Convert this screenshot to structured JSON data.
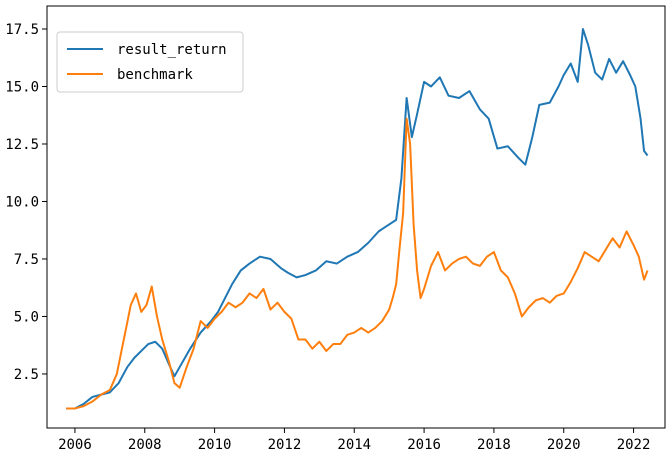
{
  "chart_data": {
    "type": "line",
    "title": "",
    "xlabel": "",
    "ylabel": "",
    "xlim": [
      2005.2,
      2022.9
    ],
    "ylim": [
      0.15,
      18.5
    ],
    "x_ticks": [
      2006,
      2008,
      2010,
      2012,
      2014,
      2016,
      2018,
      2020,
      2022
    ],
    "x_tick_labels": [
      "2006",
      "2008",
      "2010",
      "2012",
      "2014",
      "2016",
      "2018",
      "2020",
      "2022"
    ],
    "y_ticks": [
      2.5,
      5.0,
      7.5,
      10.0,
      12.5,
      15.0,
      17.5
    ],
    "y_tick_labels": [
      "2.5",
      "5.0",
      "7.5",
      "10.0",
      "12.5",
      "15.0",
      "17.5"
    ],
    "grid": false,
    "legend_position": "top-left",
    "series": [
      {
        "name": "result_return",
        "color": "#1f77b4",
        "x": [
          2005.75,
          2006.0,
          2006.25,
          2006.5,
          2006.75,
          2007.0,
          2007.25,
          2007.5,
          2007.7,
          2007.9,
          2008.1,
          2008.3,
          2008.5,
          2008.7,
          2008.85,
          2009.0,
          2009.3,
          2009.6,
          2009.9,
          2010.1,
          2010.3,
          2010.5,
          2010.75,
          2011.0,
          2011.3,
          2011.6,
          2011.9,
          2012.1,
          2012.35,
          2012.6,
          2012.9,
          2013.2,
          2013.5,
          2013.8,
          2014.1,
          2014.4,
          2014.7,
          2015.0,
          2015.2,
          2015.35,
          2015.5,
          2015.65,
          2015.8,
          2016.0,
          2016.2,
          2016.45,
          2016.7,
          2017.0,
          2017.3,
          2017.6,
          2017.85,
          2018.1,
          2018.4,
          2018.7,
          2018.9,
          2019.1,
          2019.3,
          2019.6,
          2019.85,
          2020.0,
          2020.2,
          2020.4,
          2020.55,
          2020.7,
          2020.9,
          2021.1,
          2021.3,
          2021.5,
          2021.7,
          2021.9,
          2022.05,
          2022.2,
          2022.3,
          2022.4
        ],
        "values": [
          1.0,
          1.0,
          1.2,
          1.5,
          1.6,
          1.7,
          2.1,
          2.8,
          3.2,
          3.5,
          3.8,
          3.9,
          3.6,
          2.9,
          2.4,
          2.8,
          3.6,
          4.3,
          4.8,
          5.2,
          5.8,
          6.4,
          7.0,
          7.3,
          7.6,
          7.5,
          7.1,
          6.9,
          6.7,
          6.8,
          7.0,
          7.4,
          7.3,
          7.6,
          7.8,
          8.2,
          8.7,
          9.0,
          9.2,
          11.0,
          14.5,
          12.8,
          13.8,
          15.2,
          15.0,
          15.4,
          14.6,
          14.5,
          14.8,
          14.0,
          13.6,
          12.3,
          12.4,
          11.9,
          11.6,
          12.8,
          14.2,
          14.3,
          15.0,
          15.5,
          16.0,
          15.2,
          17.5,
          16.8,
          15.6,
          15.3,
          16.2,
          15.6,
          16.1,
          15.5,
          15.0,
          13.6,
          12.2,
          12.0
        ]
      },
      {
        "name": "benchmark",
        "color": "#ff7f0e",
        "x": [
          2005.75,
          2006.0,
          2006.25,
          2006.5,
          2006.75,
          2007.0,
          2007.2,
          2007.4,
          2007.6,
          2007.75,
          2007.9,
          2008.05,
          2008.2,
          2008.35,
          2008.5,
          2008.7,
          2008.85,
          2009.0,
          2009.2,
          2009.4,
          2009.6,
          2009.8,
          2010.0,
          2010.2,
          2010.4,
          2010.6,
          2010.8,
          2011.0,
          2011.2,
          2011.4,
          2011.6,
          2011.8,
          2012.0,
          2012.2,
          2012.4,
          2012.6,
          2012.8,
          2013.0,
          2013.2,
          2013.4,
          2013.6,
          2013.8,
          2014.0,
          2014.2,
          2014.4,
          2014.6,
          2014.8,
          2015.0,
          2015.1,
          2015.2,
          2015.3,
          2015.4,
          2015.5,
          2015.6,
          2015.7,
          2015.8,
          2015.9,
          2016.0,
          2016.2,
          2016.4,
          2016.6,
          2016.8,
          2017.0,
          2017.2,
          2017.4,
          2017.6,
          2017.8,
          2018.0,
          2018.2,
          2018.4,
          2018.6,
          2018.8,
          2019.0,
          2019.2,
          2019.4,
          2019.6,
          2019.8,
          2020.0,
          2020.2,
          2020.4,
          2020.6,
          2020.8,
          2021.0,
          2021.2,
          2021.4,
          2021.6,
          2021.8,
          2022.0,
          2022.15,
          2022.3,
          2022.4
        ],
        "values": [
          1.0,
          1.0,
          1.1,
          1.3,
          1.6,
          1.8,
          2.5,
          4.0,
          5.5,
          6.0,
          5.2,
          5.5,
          6.3,
          5.0,
          4.0,
          3.0,
          2.1,
          1.9,
          2.8,
          3.6,
          4.8,
          4.5,
          4.9,
          5.2,
          5.6,
          5.4,
          5.6,
          6.0,
          5.8,
          6.2,
          5.3,
          5.6,
          5.2,
          4.9,
          4.0,
          4.0,
          3.6,
          3.9,
          3.5,
          3.8,
          3.8,
          4.2,
          4.3,
          4.5,
          4.3,
          4.5,
          4.8,
          5.3,
          5.8,
          6.4,
          8.0,
          9.5,
          13.6,
          12.5,
          9.0,
          7.0,
          5.8,
          6.2,
          7.2,
          7.8,
          7.0,
          7.3,
          7.5,
          7.6,
          7.3,
          7.2,
          7.6,
          7.8,
          7.0,
          6.7,
          6.0,
          5.0,
          5.4,
          5.7,
          5.8,
          5.6,
          5.9,
          6.0,
          6.5,
          7.1,
          7.8,
          7.6,
          7.4,
          7.9,
          8.4,
          8.0,
          8.7,
          8.1,
          7.6,
          6.6,
          7.0
        ]
      }
    ]
  }
}
